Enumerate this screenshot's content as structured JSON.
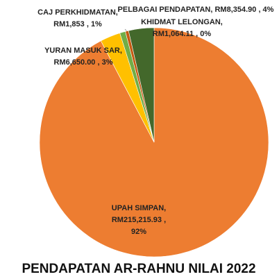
{
  "chart_data": {
    "type": "pie",
    "title": "PENDAPATAN AR-RAHNU NILAI 2022",
    "values": [
      215215.93,
      6650.0,
      1853,
      1064.11,
      8354.9
    ],
    "colors": [
      "#ed7d31",
      "#ffc000",
      "#70ad47",
      "#c55a11",
      "#43682b"
    ],
    "labels": [
      [
        "UPAH SIMPAN,",
        "RM215,215.93 ,",
        "92%"
      ],
      [
        "YURAN MASUK SAR,",
        "RM6,650.00 , 3%"
      ],
      [
        "CAJ PERKHIDMATAN,",
        "RM1,853 , 1%"
      ],
      [
        "KHIDMAT LELONGAN,",
        "RM1,064.11 , 0%"
      ],
      [
        "PELBAGAI PENDAPATAN,  RM8,354.90 , 4%"
      ]
    ]
  }
}
